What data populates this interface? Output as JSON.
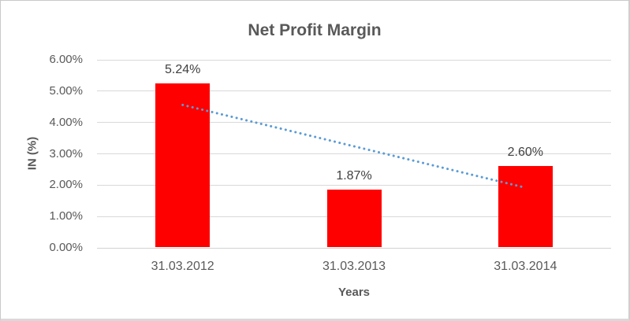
{
  "chart_data": {
    "type": "bar",
    "title": "Net Profit Margin",
    "xlabel": "Years",
    "ylabel": "IN (%)",
    "categories": [
      "31.03.2012",
      "31.03.2013",
      "31.03.2014"
    ],
    "values": [
      5.24,
      1.87,
      2.6
    ],
    "data_labels": [
      "5.24%",
      "1.87%",
      "2.60%"
    ],
    "ylim": [
      0,
      6
    ],
    "ytick_labels": [
      "0.00%",
      "1.00%",
      "2.00%",
      "3.00%",
      "4.00%",
      "5.00%",
      "6.00%"
    ],
    "grid": true,
    "legend": "none",
    "bar_color": "#FF0000",
    "gridline_color": "#D9D9D9",
    "axis_line_color": "#D2D2D2",
    "title_color": "#595959",
    "axis_text_color": "#595959",
    "data_label_color": "#3F3F3F",
    "trendline": {
      "type": "linear",
      "style": "dotted",
      "color": "#5B9BD5",
      "start_value": 4.56,
      "end_value": 1.92
    }
  }
}
